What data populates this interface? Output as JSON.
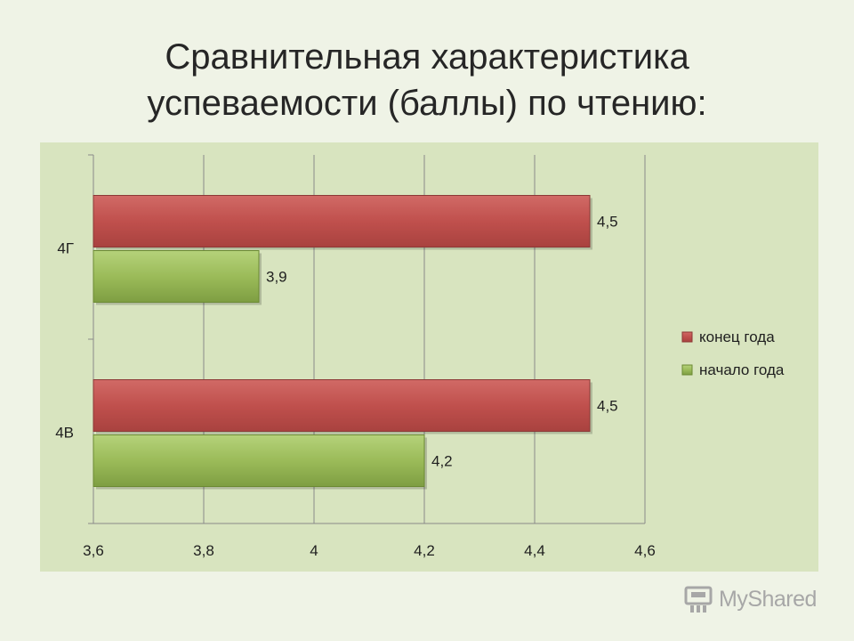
{
  "title_lines": [
    "Сравнительная характеристика",
    "успеваемости (баллы) по чтению:"
  ],
  "chart_data": {
    "type": "bar",
    "orientation": "horizontal",
    "categories": [
      "4Г",
      "4В"
    ],
    "series": [
      {
        "name": "конец года",
        "values": [
          4.5,
          4.5
        ],
        "color": "#c0504d"
      },
      {
        "name": "начало года",
        "values": [
          3.9,
          4.2
        ],
        "color": "#9bbb59"
      }
    ],
    "xlim": [
      3.6,
      4.6
    ],
    "xticks": [
      "3,6",
      "3,8",
      "4",
      "4,2",
      "4,4",
      "4,6"
    ],
    "xtick_values": [
      3.6,
      3.8,
      4.0,
      4.2,
      4.4,
      4.6
    ],
    "data_labels": [
      [
        "4,5",
        "4,5"
      ],
      [
        "3,9",
        "4,2"
      ]
    ],
    "grid": "vertical",
    "legend_position": "right",
    "background": "#d8e4bf"
  },
  "watermark": {
    "text": "MyShared",
    "icon": "podium-icon"
  }
}
